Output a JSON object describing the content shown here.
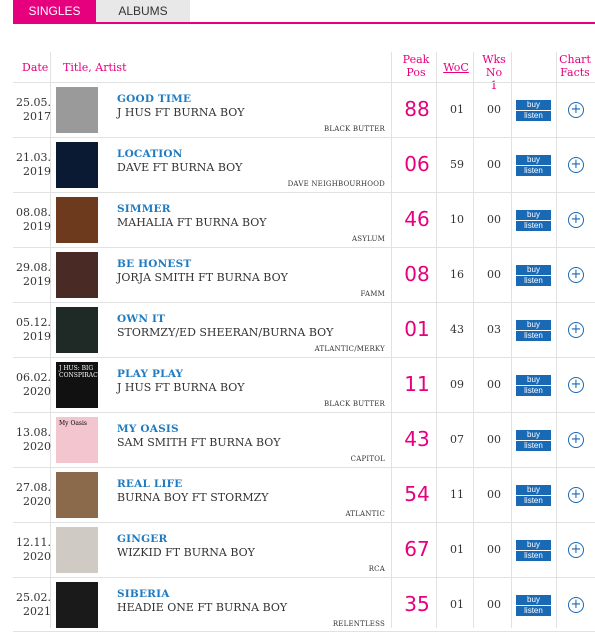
{
  "tabs": [
    {
      "label": "SINGLES",
      "active": true
    },
    {
      "label": "ALBUMS",
      "active": false
    }
  ],
  "header": {
    "date": "Date",
    "title_artist": "Title, Artist",
    "peak": "Peak Pos",
    "woc": "WoC",
    "wks": "Wks No 1",
    "chart_facts": "Chart Facts"
  },
  "buy_label": "buy",
  "listen_label": "listen",
  "rows": [
    {
      "date": "25.05. 2017",
      "title": "GOOD TIME",
      "artist": "J HUS FT BURNA BOY",
      "label": "BLACK BUTTER",
      "peak": "88",
      "woc": "01",
      "wks": "00",
      "cover_color": "#9a9a9a"
    },
    {
      "date": "21.03. 2019",
      "title": "LOCATION",
      "artist": "DAVE FT BURNA BOY",
      "label": "DAVE NEIGHBOURHOOD",
      "peak": "06",
      "woc": "59",
      "wks": "00",
      "cover_color": "#0b1a33"
    },
    {
      "date": "08.08. 2019",
      "title": "SIMMER",
      "artist": "MAHALIA FT BURNA BOY",
      "label": "ASYLUM",
      "peak": "46",
      "woc": "10",
      "wks": "00",
      "cover_color": "#6e3a1e"
    },
    {
      "date": "29.08. 2019",
      "title": "BE HONEST",
      "artist": "JORJA SMITH FT BURNA BOY",
      "label": "FAMM",
      "peak": "08",
      "woc": "16",
      "wks": "00",
      "cover_color": "#4a2a24"
    },
    {
      "date": "05.12. 2019",
      "title": "OWN IT",
      "artist": "STORMZY/ED SHEERAN/BURNA BOY",
      "label": "ATLANTIC/MERKY",
      "peak": "01",
      "woc": "43",
      "wks": "03",
      "cover_color": "#1f2a26"
    },
    {
      "date": "06.02. 2020",
      "title": "PLAY PLAY",
      "artist": "J HUS FT BURNA BOY",
      "label": "BLACK BUTTER",
      "peak": "11",
      "woc": "09",
      "wks": "00",
      "cover_color": "#111111",
      "cover_text": "J HUS: BIG CONSPIRACY"
    },
    {
      "date": "13.08. 2020",
      "title": "MY OASIS",
      "artist": "SAM SMITH FT BURNA BOY",
      "label": "CAPITOL",
      "peak": "43",
      "woc": "07",
      "wks": "00",
      "cover_color": "#f3c6cf",
      "cover_text": "My Oasis"
    },
    {
      "date": "27.08. 2020",
      "title": "REAL LIFE",
      "artist": "BURNA BOY FT STORMZY",
      "label": "ATLANTIC",
      "peak": "54",
      "woc": "11",
      "wks": "00",
      "cover_color": "#8a6a4a"
    },
    {
      "date": "12.11. 2020",
      "title": "GINGER",
      "artist": "WIZKID FT BURNA BOY",
      "label": "RCA",
      "peak": "67",
      "woc": "01",
      "wks": "00",
      "cover_color": "#cfcac4"
    },
    {
      "date": "25.02. 2021",
      "title": "SIBERIA",
      "artist": "HEADIE ONE FT BURNA BOY",
      "label": "RELENTLESS",
      "peak": "35",
      "woc": "01",
      "wks": "00",
      "cover_color": "#1a1a1a"
    }
  ]
}
